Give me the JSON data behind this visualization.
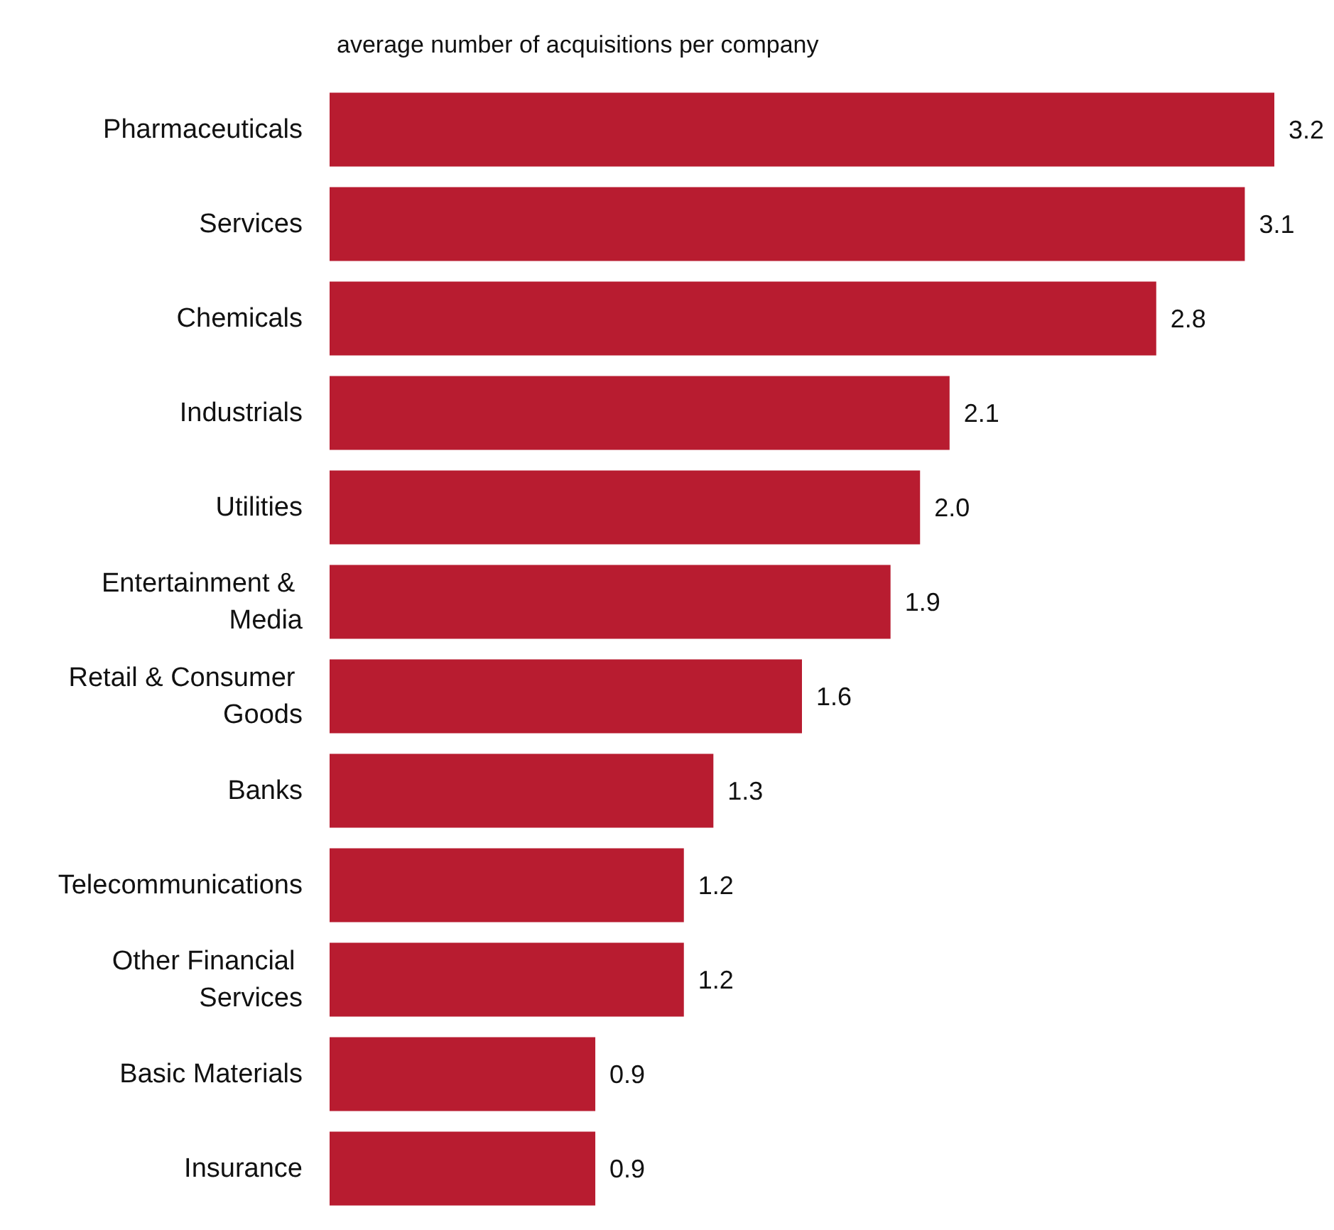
{
  "chart_data": {
    "type": "bar",
    "orientation": "horizontal",
    "title": "average number of acquisitions per company",
    "categories": [
      "Pharmaceuticals",
      "Services",
      "Chemicals",
      "Industrials",
      "Utilities",
      "Entertainment & Media",
      "Retail & Consumer Goods",
      "Banks",
      "Telecommunications",
      "Other Financial Services",
      "Basic Materials",
      "Insurance"
    ],
    "values": [
      3.2,
      3.1,
      2.8,
      2.1,
      2.0,
      1.9,
      1.6,
      1.3,
      1.2,
      1.2,
      0.9,
      0.9
    ],
    "value_labels": [
      "3.2",
      "3.1",
      "2.8",
      "2.1",
      "2.0",
      "1.9",
      "1.6",
      "1.3",
      "1.2",
      "1.2",
      "0.9",
      "0.9"
    ],
    "color": "#b81c30",
    "xlim": [
      0,
      3.2
    ]
  }
}
